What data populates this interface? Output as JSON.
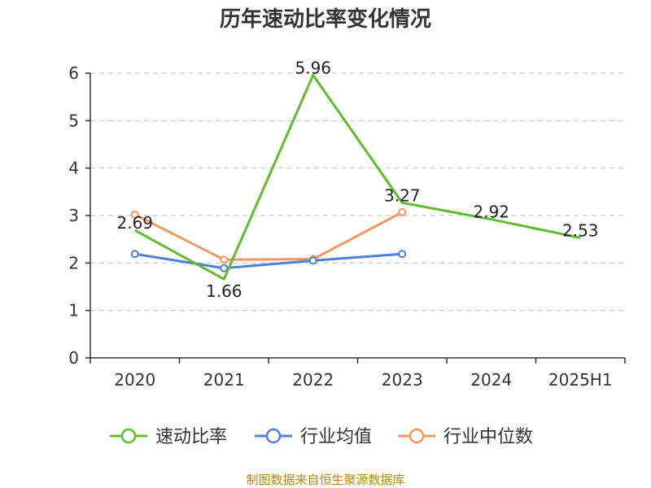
{
  "chart_data": {
    "type": "line",
    "title": "历年速动比率变化情况",
    "categories": [
      "2020",
      "2021",
      "2022",
      "2023",
      "2024",
      "2025H1"
    ],
    "ylim": [
      0,
      6
    ],
    "yticks": [
      "0",
      "1",
      "2",
      "3",
      "4",
      "5",
      "6"
    ],
    "grid": true,
    "legend_position": "bottom",
    "series": [
      {
        "name": "速动比率",
        "color": "#5cbf2a",
        "values": [
          2.69,
          1.66,
          5.96,
          3.27,
          2.92,
          2.53
        ],
        "labels": [
          "2.69",
          "1.66",
          "5.96",
          "3.27",
          "2.92",
          "2.53"
        ]
      },
      {
        "name": "行业均值",
        "color": "#4f7fd8",
        "values": [
          2.19,
          1.89,
          2.05,
          2.19,
          null,
          null
        ]
      },
      {
        "name": "行业中位数",
        "color": "#f59560",
        "values": [
          3.02,
          2.07,
          2.08,
          3.07,
          null,
          null
        ]
      }
    ]
  },
  "footer": {
    "source": "制图数据来自恒生聚源数据库"
  }
}
